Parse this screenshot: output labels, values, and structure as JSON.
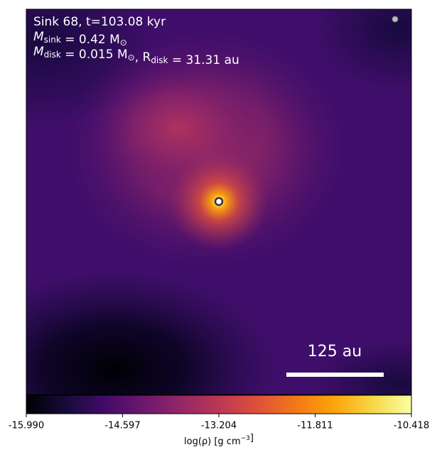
{
  "chart_data": {
    "type": "image",
    "info": [
      [
        {
          "text": "Sink 68, t=103.08 kyr"
        }
      ],
      [
        {
          "text": "M",
          "sub": "sink"
        },
        {
          "text": " = 0.42 M",
          "sub": "⊙"
        }
      ],
      [
        {
          "text": "M",
          "sub": "disk"
        },
        {
          "text": " = 0.015 M",
          "sub": "⊙"
        },
        {
          "text": ", R",
          "sub": "disk"
        },
        {
          "text": " = 31.31 au"
        }
      ]
    ],
    "scale_bar_label": "125 au",
    "colorbar": {
      "lim": [
        -15.99,
        -10.418
      ],
      "ticks": [
        {
          "value": -15.99,
          "label": "-15.990"
        },
        -14.597,
        -13.204,
        -11.811,
        -10.418
      ],
      "label": [
        {
          "text": "log(ρ) [g cm"
        },
        {
          "sup": "−3"
        },
        {
          "text": "]"
        }
      ]
    }
  }
}
